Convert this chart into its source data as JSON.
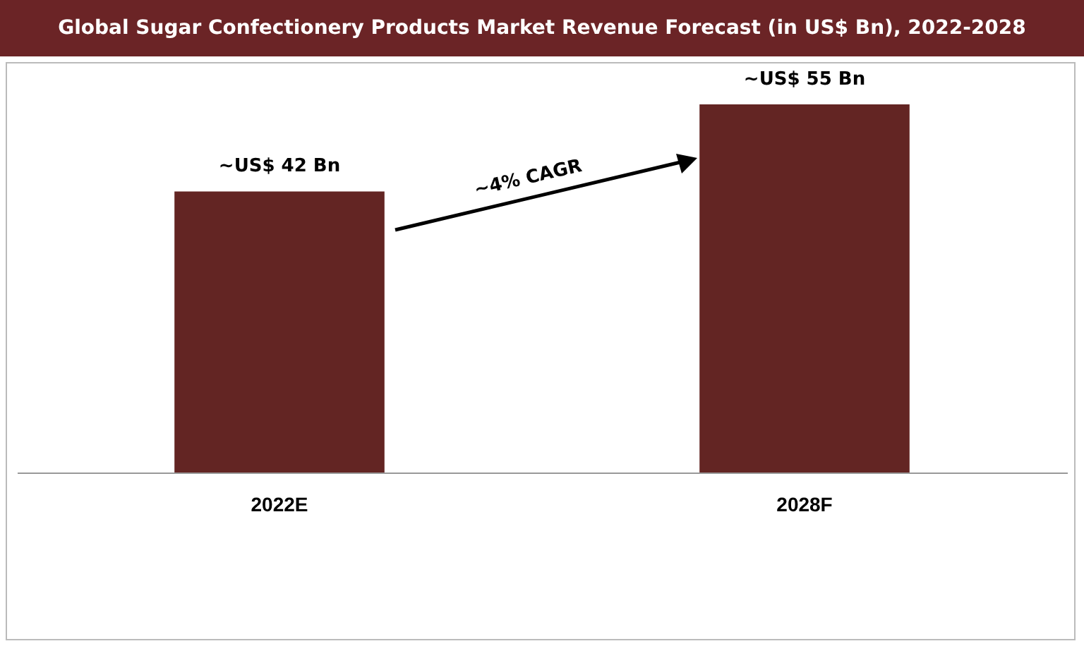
{
  "chart_data": {
    "type": "bar",
    "title": "Global Sugar Confectionery Products Market Revenue Forecast (in US$ Bn), 2022-2028",
    "categories": [
      "2022E",
      "2028F"
    ],
    "values": [
      42,
      55
    ],
    "value_labels": [
      "~US$ 42 Bn",
      "~US$ 55 Bn"
    ],
    "color": "#632523",
    "annotations": [
      "~4% CAGR"
    ],
    "grid": false
  }
}
